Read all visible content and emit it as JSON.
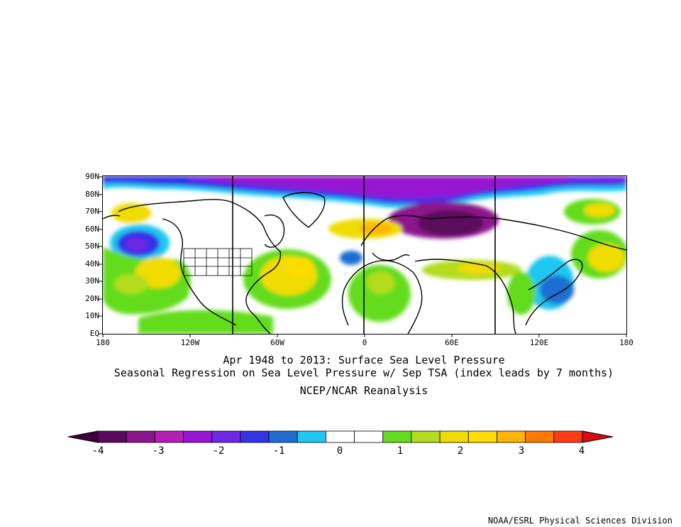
{
  "map": {
    "lat_labels": [
      "90N",
      "80N",
      "70N",
      "60N",
      "50N",
      "40N",
      "30N",
      "20N",
      "10N",
      "EQ"
    ],
    "lon_labels": [
      "180",
      "120W",
      "60W",
      "0",
      "60E",
      "120E",
      "180"
    ]
  },
  "titles": {
    "line1": "Apr 1948 to 2013: Surface Sea Level Pressure",
    "line2": "Seasonal Regression on Sea Level Pressure  w/ Sep TSA (index leads by 7 months)",
    "line3": "NCEP/NCAR Reanalysis"
  },
  "colorbar": {
    "labels": [
      "-4",
      "-3",
      "-2",
      "-1",
      "0",
      "1",
      "2",
      "3",
      "4"
    ],
    "colors": [
      "#5a0a5a",
      "#8c148c",
      "#b41eb4",
      "#9614d2",
      "#6e28e6",
      "#3232e6",
      "#1e6ed2",
      "#1ec8f0",
      "#ffffff",
      "#ffffff",
      "#64dc1e",
      "#b4dc1e",
      "#f0dc00",
      "#ffdc00",
      "#ffb400",
      "#ff7800",
      "#ff3c14"
    ],
    "under_color": "#3c003c",
    "over_color": "#dc0a0a"
  },
  "credit": "NOAA/ESRL Physical Sciences Division"
}
